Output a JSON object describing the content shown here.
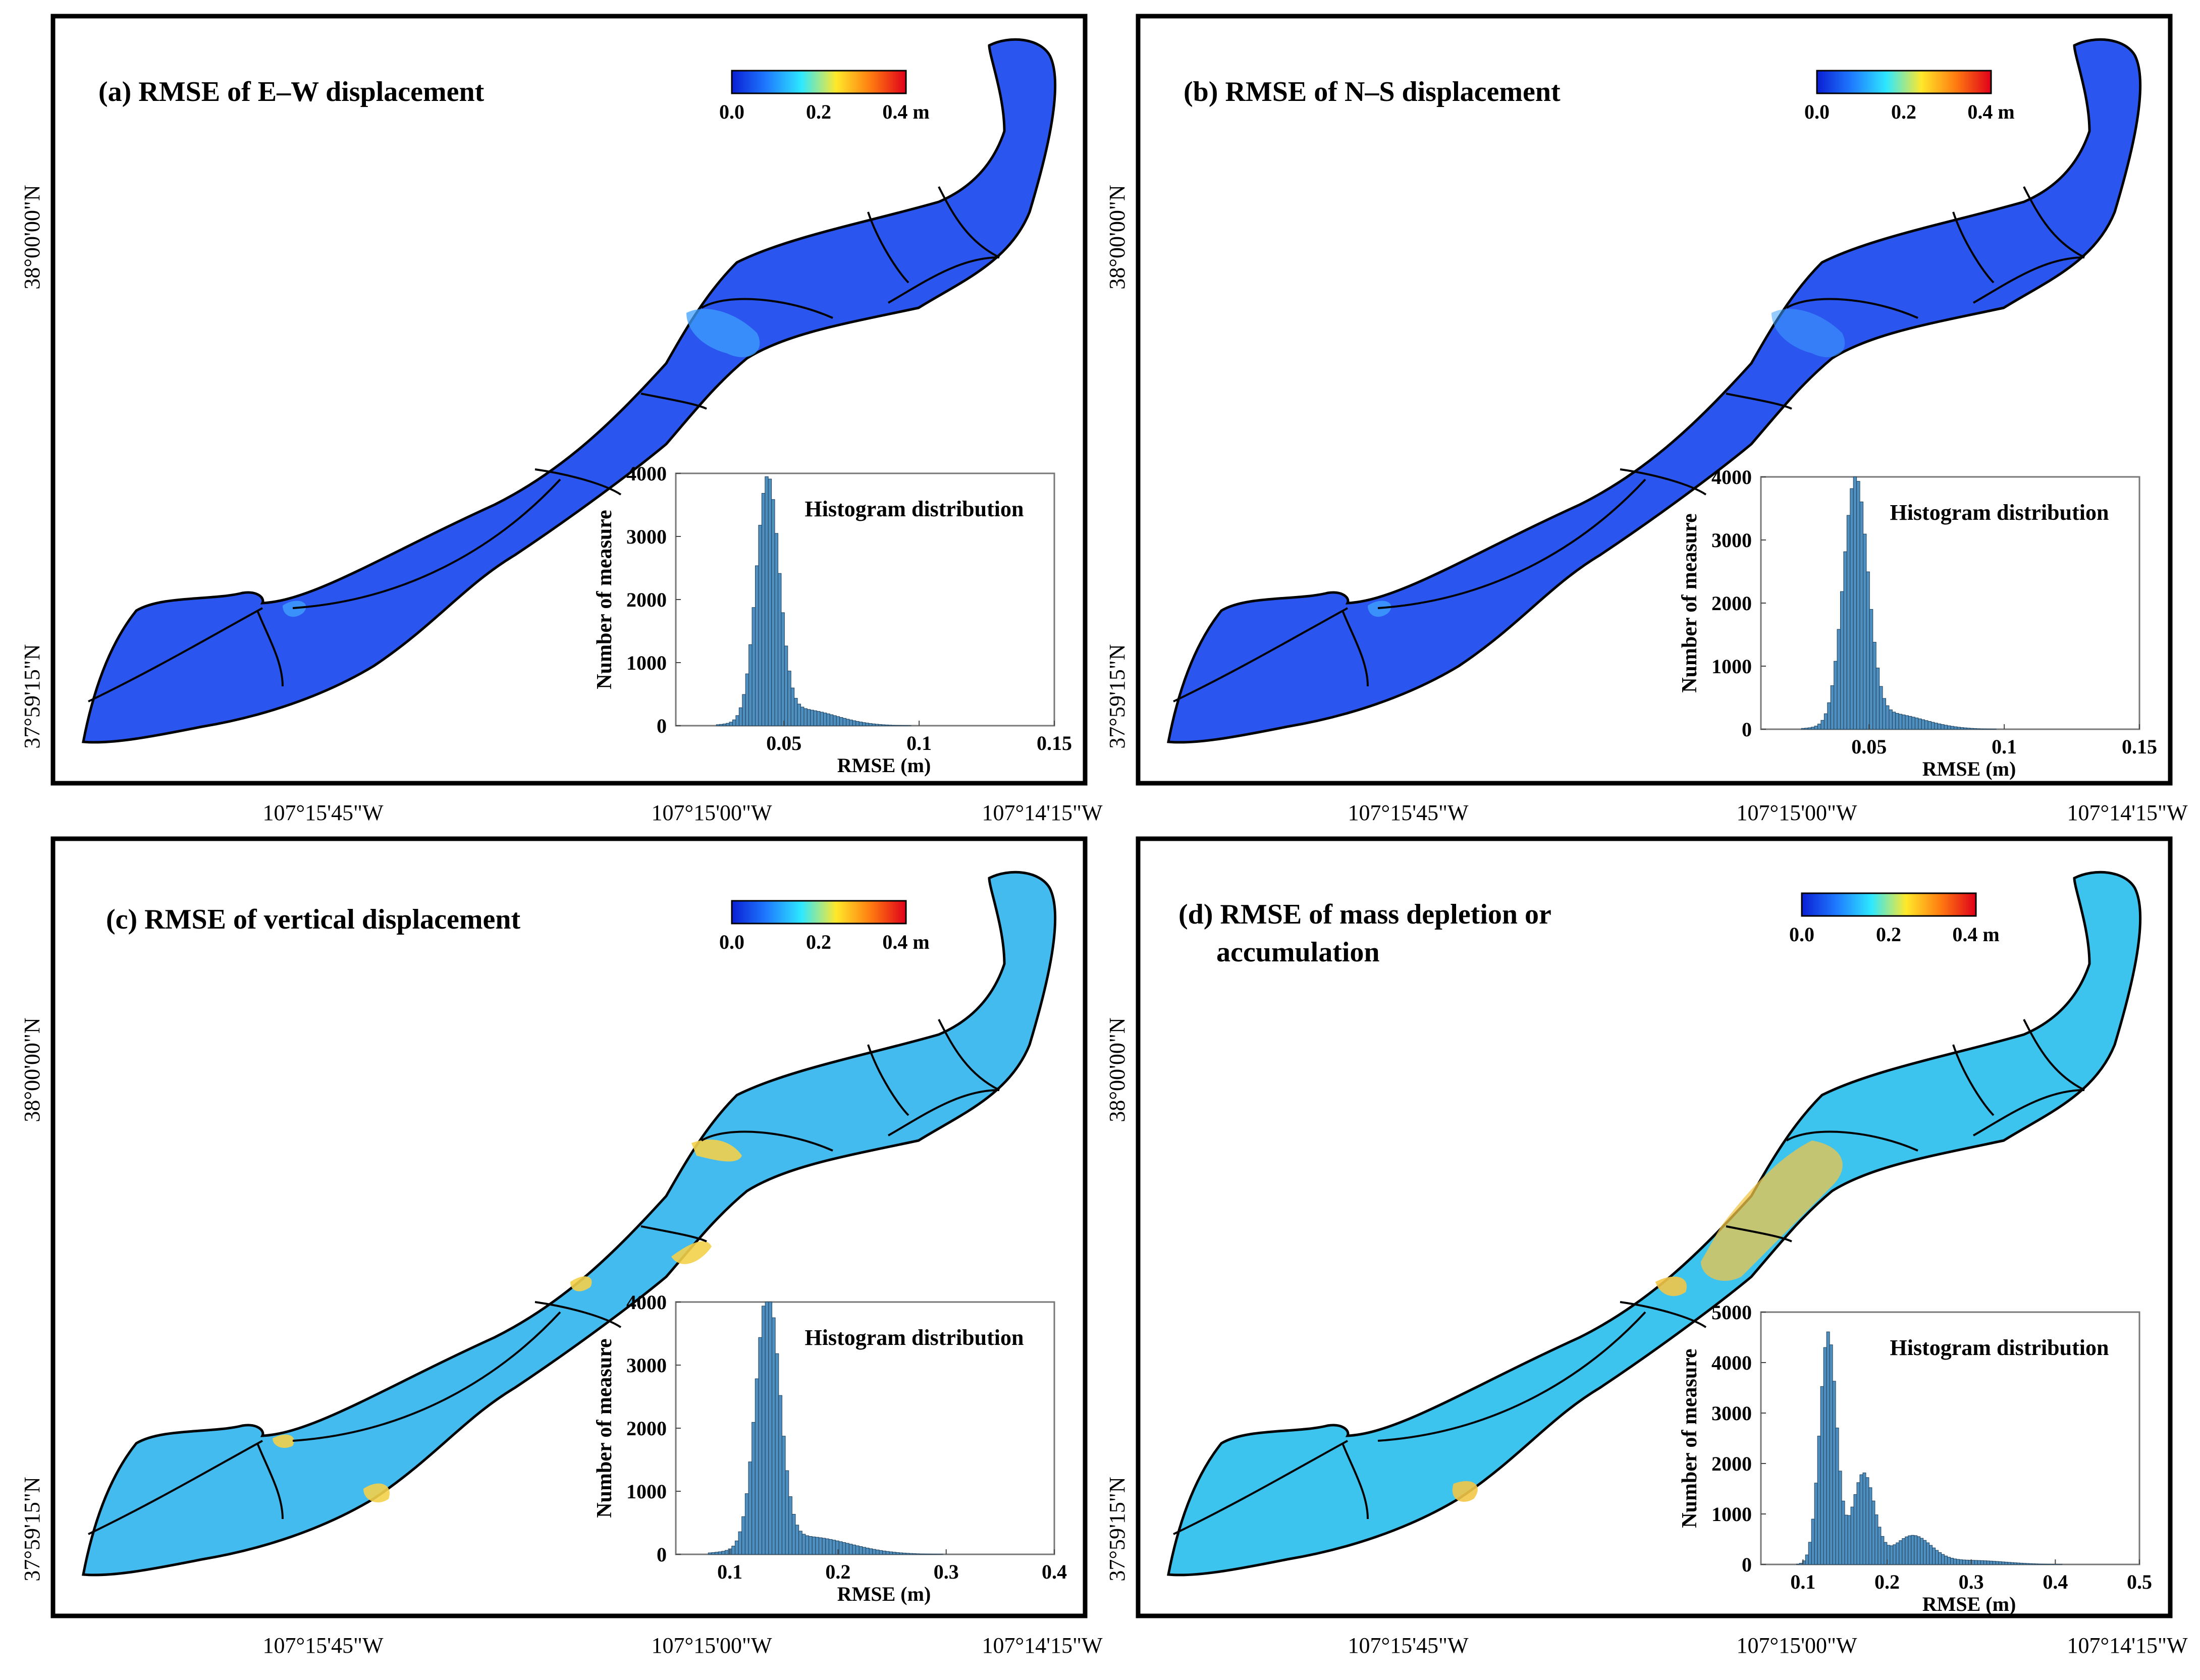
{
  "colorbar": {
    "stops": [
      "#0a1fd4",
      "#1f7bff",
      "#2ee8ff",
      "#ffe82a",
      "#ff7a10",
      "#e0001a"
    ],
    "ticks": [
      "0.0",
      "0.2",
      "0.4 m"
    ]
  },
  "map_colors": {
    "a": {
      "base": "#2a55ee",
      "hot": "#3fa0ff"
    },
    "b": {
      "base": "#2a55ee",
      "hot": "#3fa0ff"
    },
    "c": {
      "base": "#44bbef",
      "hot": "#f4d24a"
    },
    "d": {
      "base": "#3cc4ee",
      "hot": "#f2c648"
    }
  },
  "axes": {
    "lat_labels": [
      "38°00'00\"N",
      "37°59'15\"N"
    ],
    "lon_labels": [
      "107°15'45\"W",
      "107°15'00\"W",
      "107°14'15\"W"
    ]
  },
  "panels": [
    {
      "id": "a",
      "title_lines": [
        "(a) RMSE of E–W displacement"
      ],
      "histogram": {
        "title": "Histogram distribution",
        "xlabel": "RMSE (m)",
        "ylabel": "Number of measure",
        "xlim": [
          0.01,
          0.15
        ],
        "ylim": [
          0,
          4000
        ],
        "xticks": [
          0.05,
          0.1,
          0.15
        ],
        "xtick_labels": [
          "0.05",
          "0.1",
          "0.15"
        ],
        "yticks": [
          0,
          1000,
          2000,
          3000,
          4000
        ],
        "dist": [
          {
            "mu": 0.044,
            "sigma": 0.0042,
            "amp": 3800
          },
          {
            "mu": 0.056,
            "sigma": 0.013,
            "amp": 260
          }
        ],
        "range": [
          0.025,
          0.145
        ],
        "bins": 100
      }
    },
    {
      "id": "b",
      "title_lines": [
        "(b) RMSE of N–S displacement"
      ],
      "histogram": {
        "title": "Histogram distribution",
        "xlabel": "RMSE (m)",
        "ylabel": "Number of measure",
        "xlim": [
          0.01,
          0.15
        ],
        "ylim": [
          0,
          4000
        ],
        "xticks": [
          0.05,
          0.1,
          0.15
        ],
        "xtick_labels": [
          "0.05",
          "0.1",
          "0.15"
        ],
        "yticks": [
          0,
          1000,
          2000,
          3000,
          4000
        ],
        "dist": [
          {
            "mu": 0.045,
            "sigma": 0.0045,
            "amp": 3850
          },
          {
            "mu": 0.057,
            "sigma": 0.013,
            "amp": 250
          }
        ],
        "range": [
          0.025,
          0.145
        ],
        "bins": 100
      }
    },
    {
      "id": "c",
      "title_lines": [
        "(c) RMSE of vertical displacement"
      ],
      "histogram": {
        "title": "Histogram distribution",
        "xlabel": "RMSE (m)",
        "ylabel": "Number of measure",
        "xlim": [
          0.05,
          0.4
        ],
        "ylim": [
          0,
          4000
        ],
        "xticks": [
          0.1,
          0.2,
          0.3,
          0.4
        ],
        "xtick_labels": [
          "0.1",
          "0.2",
          "0.3",
          "0.4"
        ],
        "yticks": [
          0,
          1000,
          2000,
          3000,
          4000
        ],
        "dist": [
          {
            "mu": 0.135,
            "sigma": 0.011,
            "amp": 4000
          },
          {
            "mu": 0.17,
            "sigma": 0.04,
            "amp": 280
          }
        ],
        "range": [
          0.08,
          0.39
        ],
        "bins": 100
      }
    },
    {
      "id": "d",
      "title_lines": [
        "(d) RMSE of mass depletion or",
        "accumulation"
      ],
      "histogram": {
        "title": "Histogram distribution",
        "xlabel": "RMSE (m)",
        "ylabel": "Number of measure",
        "xlim": [
          0.05,
          0.5
        ],
        "ylim": [
          0,
          5000
        ],
        "xticks": [
          0.1,
          0.2,
          0.3,
          0.4,
          0.5
        ],
        "xtick_labels": [
          "0.1",
          "0.2",
          "0.3",
          "0.4",
          "0.5"
        ],
        "yticks": [
          0,
          1000,
          2000,
          3000,
          4000,
          5000
        ],
        "dist": [
          {
            "mu": 0.13,
            "sigma": 0.01,
            "amp": 4600
          },
          {
            "mu": 0.172,
            "sigma": 0.013,
            "amp": 1800
          },
          {
            "mu": 0.23,
            "sigma": 0.022,
            "amp": 560
          },
          {
            "mu": 0.3,
            "sigma": 0.04,
            "amp": 80
          }
        ],
        "range": [
          0.085,
          0.48
        ],
        "bins": 110
      }
    }
  ]
}
